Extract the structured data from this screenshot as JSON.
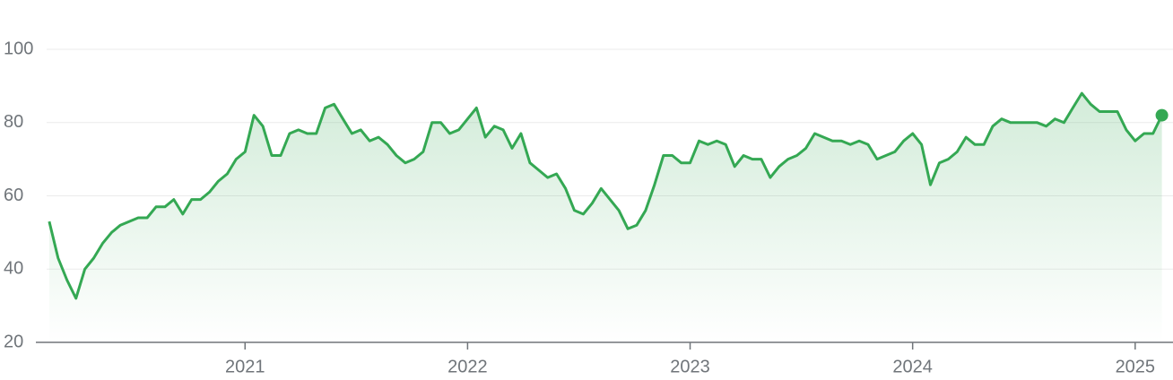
{
  "chart_data": {
    "type": "line",
    "x": [
      2020.12,
      2020.16,
      2020.2,
      2020.24,
      2020.28,
      2020.32,
      2020.36,
      2020.4,
      2020.44,
      2020.48,
      2020.52,
      2020.56,
      2020.6,
      2020.64,
      2020.68,
      2020.72,
      2020.76,
      2020.8,
      2020.84,
      2020.88,
      2020.92,
      2020.96,
      2021.0,
      2021.04,
      2021.08,
      2021.12,
      2021.16,
      2021.2,
      2021.24,
      2021.28,
      2021.32,
      2021.36,
      2021.4,
      2021.44,
      2021.48,
      2021.52,
      2021.56,
      2021.6,
      2021.64,
      2021.68,
      2021.72,
      2021.76,
      2021.8,
      2021.84,
      2021.88,
      2021.92,
      2021.96,
      2022.0,
      2022.04,
      2022.08,
      2022.12,
      2022.16,
      2022.2,
      2022.24,
      2022.28,
      2022.32,
      2022.36,
      2022.4,
      2022.44,
      2022.48,
      2022.52,
      2022.56,
      2022.6,
      2022.64,
      2022.68,
      2022.72,
      2022.76,
      2022.8,
      2022.84,
      2022.88,
      2022.92,
      2022.96,
      2023.0,
      2023.04,
      2023.08,
      2023.12,
      2023.16,
      2023.2,
      2023.24,
      2023.28,
      2023.32,
      2023.36,
      2023.4,
      2023.44,
      2023.48,
      2023.52,
      2023.56,
      2023.6,
      2023.64,
      2023.68,
      2023.72,
      2023.76,
      2023.8,
      2023.84,
      2023.88,
      2023.92,
      2023.96,
      2024.0,
      2024.04,
      2024.08,
      2024.12,
      2024.16,
      2024.2,
      2024.24,
      2024.28,
      2024.32,
      2024.36,
      2024.4,
      2024.44,
      2024.48,
      2024.52,
      2024.56,
      2024.6,
      2024.64,
      2024.68,
      2024.72,
      2024.76,
      2024.8,
      2024.84,
      2024.88,
      2024.92,
      2024.96,
      2025.0,
      2025.04,
      2025.08,
      2025.12
    ],
    "series": [
      {
        "color": "#34a853",
        "values": [
          53,
          43,
          37,
          32,
          40,
          43,
          47,
          50,
          52,
          53,
          54,
          54,
          57,
          57,
          59,
          55,
          59,
          59,
          61,
          64,
          66,
          70,
          72,
          82,
          79,
          71,
          71,
          77,
          78,
          77,
          77,
          84,
          85,
          81,
          77,
          78,
          75,
          76,
          74,
          71,
          69,
          70,
          72,
          80,
          80,
          77,
          78,
          81,
          84,
          76,
          79,
          78,
          73,
          77,
          69,
          67,
          65,
          66,
          62,
          56,
          55,
          58,
          62,
          59,
          56,
          51,
          52,
          56,
          63,
          71,
          71,
          69,
          69,
          75,
          74,
          75,
          74,
          68,
          71,
          70,
          70,
          65,
          68,
          70,
          71,
          73,
          77,
          76,
          75,
          75,
          74,
          75,
          74,
          70,
          71,
          72,
          75,
          77,
          74,
          63,
          69,
          70,
          72,
          76,
          74,
          74,
          79,
          81,
          80,
          80,
          80,
          80,
          79,
          81,
          80,
          84,
          88,
          85,
          83,
          83,
          83,
          78,
          75,
          77,
          77,
          82
        ]
      }
    ],
    "xlim": [
      2020.06,
      2025.17
    ],
    "xticks": [
      2021,
      2022,
      2023,
      2024,
      2025
    ],
    "ylim": [
      20,
      100
    ],
    "yticks": [
      20,
      40,
      60,
      80,
      100
    ],
    "grid": true
  }
}
